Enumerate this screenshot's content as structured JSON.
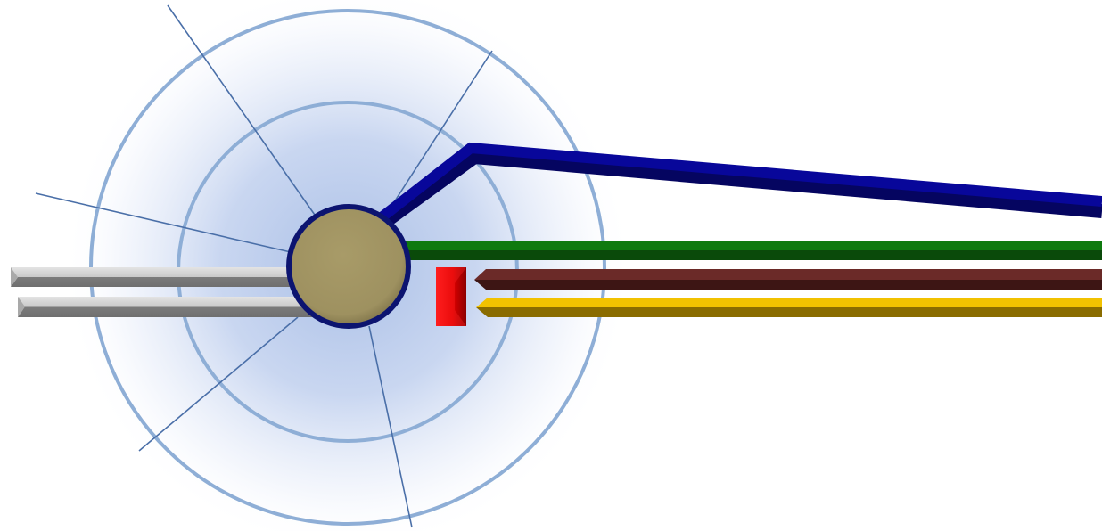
{
  "diagram": {
    "type": "hub-and-lines schematic",
    "colors": {
      "background": "#ffffff",
      "glow_center": "#aabfe6",
      "ring": "#8eaed6",
      "ray": "#4a6fa8",
      "hub_fill": "#9e9160",
      "hub_border": "#0c1470",
      "blue_line": "#08079a",
      "blue_line_shadow": "#050560",
      "green_bar": "#0f7a0f",
      "green_bar_shadow": "#0a4a0a",
      "maroon_bar": "#6b2a28",
      "maroon_bar_shadow": "#3d1514",
      "yellow_bar": "#f2c200",
      "yellow_bar_shadow": "#8a6c00",
      "gray_bar": "#c9c9c9",
      "gray_bar_shadow": "#6f6f6f",
      "red_block": "#e00000",
      "red_block_shadow": "#8a0000"
    },
    "elements": [
      {
        "name": "rings",
        "kind": "concentric rings",
        "count": 2
      },
      {
        "name": "rays",
        "kind": "radial lines",
        "count": 6
      },
      {
        "name": "hub",
        "kind": "circle"
      },
      {
        "name": "blue-line",
        "kind": "bent connector"
      },
      {
        "name": "green-bar",
        "kind": "horizontal bar"
      },
      {
        "name": "maroon-bar",
        "kind": "horizontal bar"
      },
      {
        "name": "yellow-bar",
        "kind": "horizontal bar"
      },
      {
        "name": "gray-bar-top",
        "kind": "horizontal bar"
      },
      {
        "name": "gray-bar-bottom",
        "kind": "horizontal bar"
      },
      {
        "name": "red-block",
        "kind": "small block"
      }
    ]
  }
}
